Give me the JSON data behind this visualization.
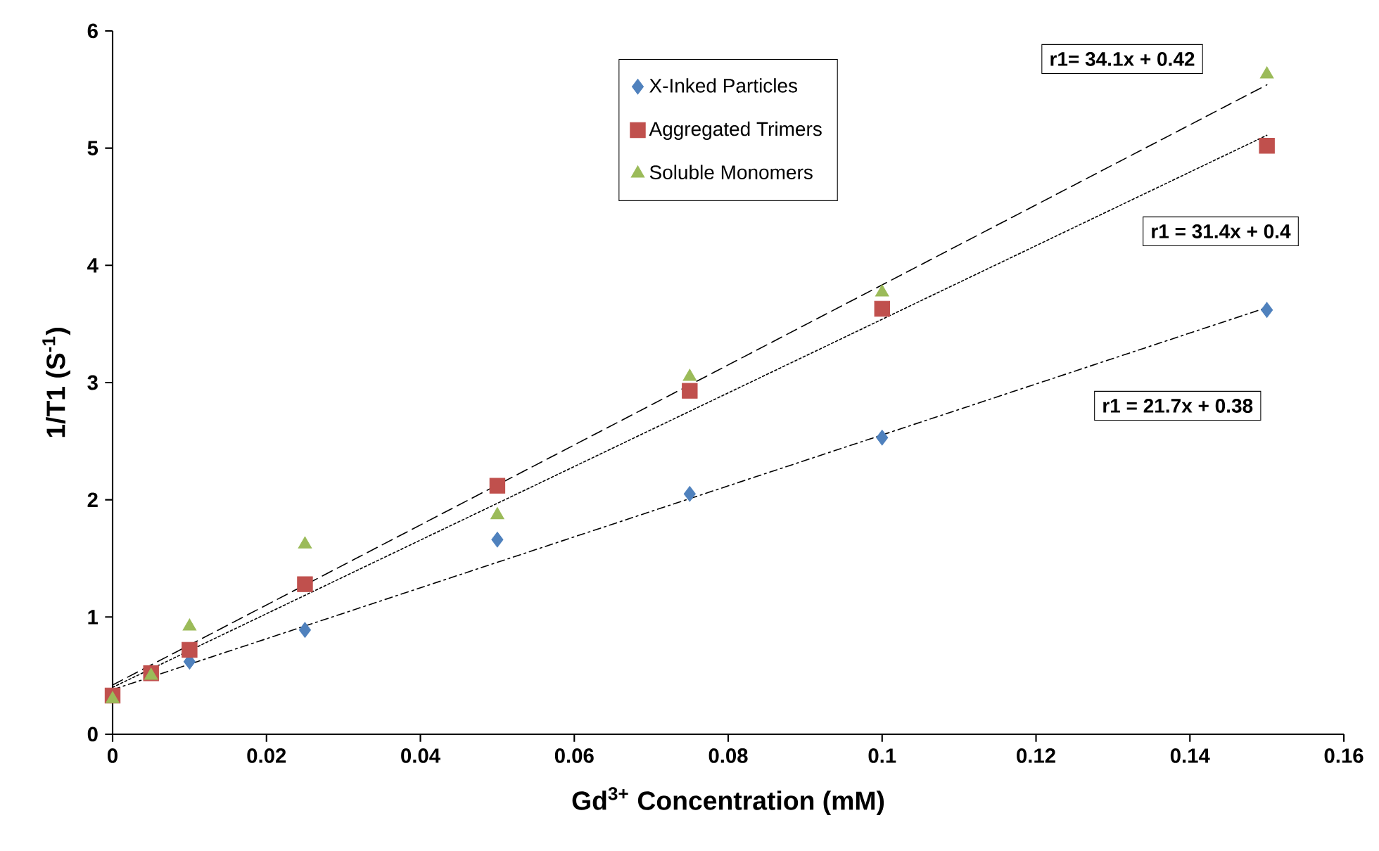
{
  "chart_data": {
    "type": "scatter",
    "xlabel": "Gd$^{3+}$ Concentration (mM)",
    "ylabel": "1/T1 (S$^{-1}$)",
    "xlim": [
      0,
      0.16
    ],
    "xticks": [
      0,
      0.02,
      0.04,
      0.06,
      0.08,
      0.1,
      0.12,
      0.14,
      0.16
    ],
    "ylim": [
      0,
      6
    ],
    "yticks": [
      0,
      1,
      2,
      3,
      4,
      5,
      6
    ],
    "grid": false,
    "legend": "top",
    "x": [
      0,
      0.005,
      0.01,
      0.025,
      0.05,
      0.075,
      0.1,
      0.15
    ],
    "series": [
      {
        "name": "X-Inked Particles",
        "color": "#4f81bd",
        "marker": "diamond",
        "values": [
          null,
          null,
          0.62,
          0.89,
          1.66,
          2.05,
          2.53,
          3.62
        ]
      },
      {
        "name": "Aggregated Trimers",
        "color": "#c0504d",
        "marker": "square",
        "values": [
          0.33,
          0.52,
          0.72,
          1.28,
          2.12,
          2.93,
          3.63,
          5.02
        ]
      },
      {
        "name": "Soluble Monomers",
        "color": "#9bbb59",
        "marker": "triangle",
        "values": [
          0.3,
          0.5,
          0.92,
          1.62,
          1.87,
          3.05,
          3.77,
          5.63
        ]
      },
      {
        "type": "line",
        "color": "#000000",
        "line_style": "dashed",
        "marker": "none",
        "values": [
          0.42,
          null,
          null,
          null,
          null,
          null,
          null,
          5.54
        ]
      },
      {
        "type": "line",
        "color": "#000000",
        "line_style": "dotted",
        "marker": "none",
        "values": [
          0.4,
          null,
          null,
          null,
          null,
          null,
          null,
          5.11
        ]
      },
      {
        "type": "line",
        "color": "#000000",
        "line_style": "dashdot",
        "marker": "none",
        "values": [
          0.38,
          null,
          null,
          null,
          null,
          null,
          null,
          3.64
        ]
      }
    ],
    "annotations": [
      "r1= 34.1x + 0.42",
      "r1 = 31.4x + 0.4",
      "r1 = 21.7x + 0.38"
    ]
  }
}
